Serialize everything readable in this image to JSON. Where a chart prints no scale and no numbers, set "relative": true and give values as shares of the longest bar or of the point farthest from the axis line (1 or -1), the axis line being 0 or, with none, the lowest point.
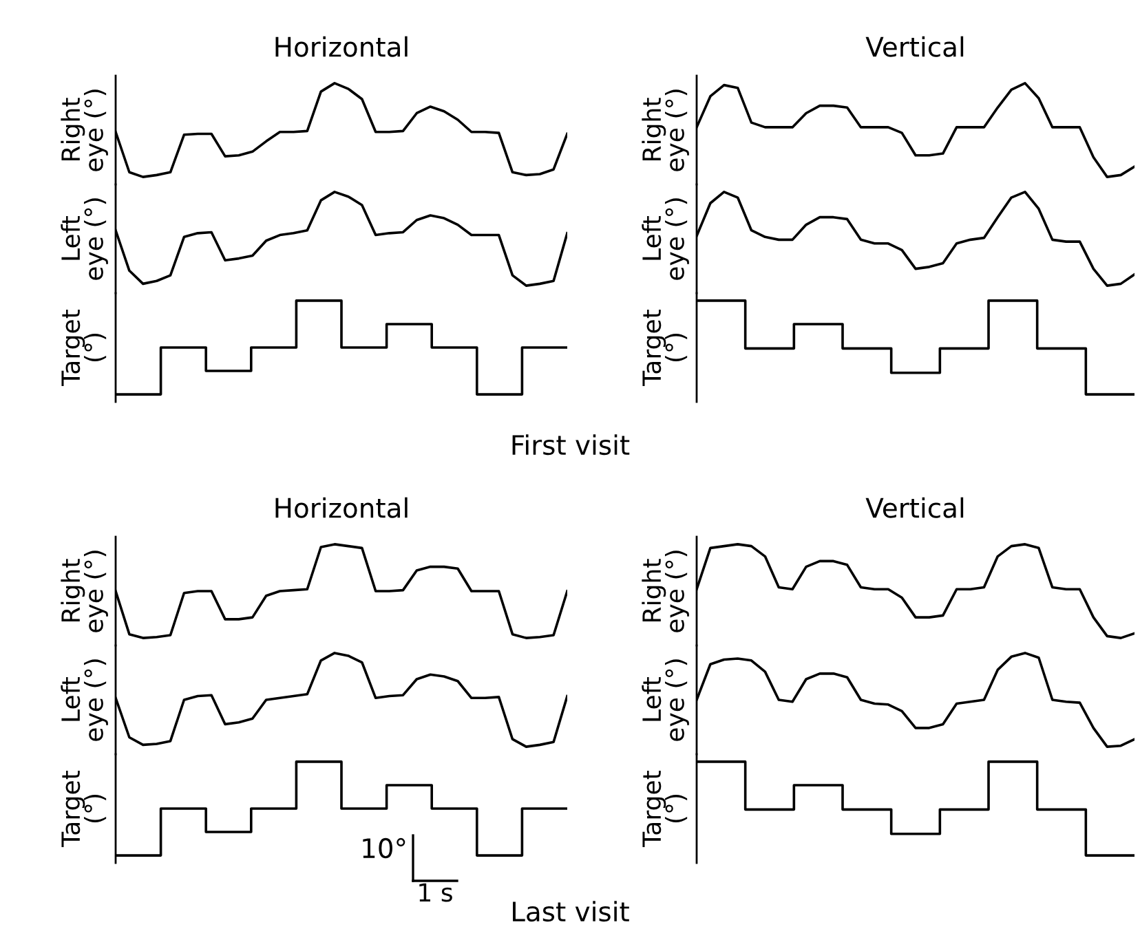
{
  "chart_data": [
    {
      "type": "line",
      "relative": true,
      "title": "Horizontal",
      "ylabel": "Right\neye (°)",
      "color": "#000000",
      "categories": [
        null,
        null,
        null,
        null,
        null,
        null,
        null,
        null,
        null,
        null,
        null,
        null,
        null,
        null,
        null,
        null,
        null,
        null,
        null,
        null,
        null,
        null,
        null,
        null,
        null,
        null,
        null,
        null,
        null,
        null,
        null,
        null,
        null,
        null
      ],
      "values": [
        0.48,
        0.05,
        0,
        0.02,
        0.05,
        0.45,
        0.46,
        0.46,
        0.22,
        0.23,
        0.27,
        0.38,
        0.48,
        0.48,
        0.49,
        0.91,
        1,
        0.94,
        0.83,
        0.48,
        0.48,
        0.49,
        0.68,
        0.75,
        0.7,
        0.61,
        0.48,
        0.48,
        0.47,
        0.05,
        0.02,
        0.03,
        0.08,
        0.46
      ]
    },
    {
      "type": "line",
      "relative": true,
      "ylabel": "Left\neye (°)",
      "color": "#000000",
      "categories": [
        null,
        null,
        null,
        null,
        null,
        null,
        null,
        null,
        null,
        null,
        null,
        null,
        null,
        null,
        null,
        null,
        null,
        null,
        null,
        null,
        null,
        null,
        null,
        null,
        null,
        null,
        null,
        null,
        null,
        null,
        null,
        null,
        null,
        null
      ],
      "values": [
        0.59,
        0.16,
        0.02,
        0.05,
        0.11,
        0.52,
        0.56,
        0.57,
        0.27,
        0.29,
        0.32,
        0.48,
        0.54,
        0.56,
        0.59,
        0.91,
        1,
        0.95,
        0.86,
        0.54,
        0.56,
        0.57,
        0.7,
        0.75,
        0.72,
        0.65,
        0.54,
        0.54,
        0.54,
        0.11,
        0,
        0.02,
        0.05,
        0.56
      ]
    },
    {
      "type": "step",
      "relative": true,
      "ylabel": "Target\n(°)",
      "color": "#000000",
      "categories": [
        null,
        null,
        null,
        null,
        null,
        null,
        null,
        null,
        null,
        null,
        null
      ],
      "values": [
        0,
        0.5,
        0.25,
        0.5,
        1,
        0.5,
        0.75,
        0.5,
        0,
        0.5,
        0.5
      ]
    },
    {
      "type": "line",
      "relative": true,
      "title": "Vertical",
      "ylabel": "Right\neye (°)",
      "color": "#000000",
      "categories": [
        null,
        null,
        null,
        null,
        null,
        null,
        null,
        null,
        null,
        null,
        null,
        null,
        null,
        null,
        null,
        null,
        null,
        null,
        null,
        null,
        null,
        null,
        null,
        null,
        null,
        null,
        null,
        null,
        null,
        null,
        null,
        null,
        null
      ],
      "values": [
        0.53,
        0.86,
        0.98,
        0.95,
        0.58,
        0.53,
        0.53,
        0.53,
        0.68,
        0.76,
        0.76,
        0.74,
        0.53,
        0.53,
        0.53,
        0.47,
        0.23,
        0.23,
        0.25,
        0.53,
        0.53,
        0.53,
        0.74,
        0.93,
        1,
        0.84,
        0.53,
        0.53,
        0.53,
        0.21,
        0,
        0.02,
        0.11
      ]
    },
    {
      "type": "line",
      "relative": true,
      "ylabel": "Left\neye (°)",
      "color": "#000000",
      "categories": [
        null,
        null,
        null,
        null,
        null,
        null,
        null,
        null,
        null,
        null,
        null,
        null,
        null,
        null,
        null,
        null,
        null,
        null,
        null,
        null,
        null,
        null,
        null,
        null,
        null,
        null,
        null,
        null,
        null,
        null,
        null,
        null,
        null
      ],
      "values": [
        0.53,
        0.88,
        1,
        0.94,
        0.59,
        0.52,
        0.49,
        0.49,
        0.65,
        0.73,
        0.73,
        0.71,
        0.49,
        0.45,
        0.45,
        0.38,
        0.18,
        0.2,
        0.24,
        0.45,
        0.49,
        0.51,
        0.73,
        0.94,
        1,
        0.82,
        0.49,
        0.47,
        0.47,
        0.18,
        0,
        0.02,
        0.12
      ]
    },
    {
      "type": "step",
      "relative": true,
      "ylabel": "Target\n(°)",
      "color": "#000000",
      "annotations": [
        "First visit"
      ],
      "categories": [
        null,
        null,
        null,
        null,
        null,
        null,
        null,
        null,
        null,
        null
      ],
      "values": [
        1,
        0.49,
        0.75,
        0.49,
        0.23,
        0.49,
        1,
        0.49,
        0,
        0
      ]
    },
    {
      "type": "line",
      "relative": true,
      "title": "Horizontal",
      "ylabel": "Right\neye (°)",
      "color": "#000000",
      "categories": [
        null,
        null,
        null,
        null,
        null,
        null,
        null,
        null,
        null,
        null,
        null,
        null,
        null,
        null,
        null,
        null,
        null,
        null,
        null,
        null,
        null,
        null,
        null,
        null,
        null,
        null,
        null,
        null,
        null,
        null,
        null,
        null,
        null,
        null
      ],
      "values": [
        0.5,
        0.04,
        0,
        0.01,
        0.03,
        0.48,
        0.5,
        0.5,
        0.2,
        0.2,
        0.22,
        0.45,
        0.5,
        0.51,
        0.52,
        0.97,
        1,
        0.98,
        0.96,
        0.5,
        0.5,
        0.51,
        0.72,
        0.76,
        0.76,
        0.74,
        0.5,
        0.5,
        0.5,
        0.04,
        0,
        0.01,
        0.03,
        0.5
      ]
    },
    {
      "type": "line",
      "relative": true,
      "ylabel": "Left\neye (°)",
      "color": "#000000",
      "categories": [
        null,
        null,
        null,
        null,
        null,
        null,
        null,
        null,
        null,
        null,
        null,
        null,
        null,
        null,
        null,
        null,
        null,
        null,
        null,
        null,
        null,
        null,
        null,
        null,
        null,
        null,
        null,
        null,
        null,
        null,
        null,
        null,
        null,
        null
      ],
      "values": [
        0.52,
        0.1,
        0.02,
        0.03,
        0.06,
        0.5,
        0.54,
        0.55,
        0.24,
        0.26,
        0.3,
        0.5,
        0.52,
        0.54,
        0.56,
        0.92,
        1,
        0.97,
        0.9,
        0.52,
        0.54,
        0.55,
        0.72,
        0.77,
        0.75,
        0.7,
        0.52,
        0.52,
        0.53,
        0.08,
        0,
        0.02,
        0.05,
        0.54
      ]
    },
    {
      "type": "step",
      "relative": true,
      "ylabel": "Target\n(°)",
      "color": "#000000",
      "annotations": [
        "10°",
        "1 s"
      ],
      "categories": [
        null,
        null,
        null,
        null,
        null,
        null,
        null,
        null,
        null,
        null,
        null
      ],
      "values": [
        0,
        0.5,
        0.25,
        0.5,
        1,
        0.5,
        0.75,
        0.5,
        0,
        0.5,
        0.5
      ]
    },
    {
      "type": "line",
      "relative": true,
      "title": "Vertical",
      "ylabel": "Right\neye (°)",
      "color": "#000000",
      "categories": [
        null,
        null,
        null,
        null,
        null,
        null,
        null,
        null,
        null,
        null,
        null,
        null,
        null,
        null,
        null,
        null,
        null,
        null,
        null,
        null,
        null,
        null,
        null,
        null,
        null,
        null,
        null,
        null,
        null,
        null,
        null,
        null,
        null
      ],
      "values": [
        0.52,
        0.96,
        0.98,
        1,
        0.98,
        0.87,
        0.54,
        0.52,
        0.76,
        0.82,
        0.82,
        0.78,
        0.54,
        0.52,
        0.52,
        0.43,
        0.22,
        0.22,
        0.24,
        0.52,
        0.52,
        0.54,
        0.87,
        0.98,
        1,
        0.96,
        0.54,
        0.52,
        0.52,
        0.22,
        0.02,
        0,
        0.05
      ]
    },
    {
      "type": "line",
      "relative": true,
      "ylabel": "Left\neye (°)",
      "color": "#000000",
      "categories": [
        null,
        null,
        null,
        null,
        null,
        null,
        null,
        null,
        null,
        null,
        null,
        null,
        null,
        null,
        null,
        null,
        null,
        null,
        null,
        null,
        null,
        null,
        null,
        null,
        null,
        null,
        null,
        null,
        null,
        null,
        null,
        null,
        null
      ],
      "values": [
        0.5,
        0.88,
        0.93,
        0.94,
        0.92,
        0.8,
        0.5,
        0.48,
        0.72,
        0.78,
        0.78,
        0.74,
        0.5,
        0.46,
        0.45,
        0.38,
        0.2,
        0.2,
        0.24,
        0.46,
        0.48,
        0.5,
        0.82,
        0.96,
        1,
        0.95,
        0.5,
        0.48,
        0.47,
        0.2,
        0,
        0.01,
        0.08
      ]
    },
    {
      "type": "step",
      "relative": true,
      "ylabel": "Target\n(°)",
      "color": "#000000",
      "annotations": [
        "Last visit"
      ],
      "categories": [
        null,
        null,
        null,
        null,
        null,
        null,
        null,
        null,
        null,
        null
      ],
      "values": [
        1,
        0.49,
        0.75,
        0.49,
        0.23,
        0.49,
        1,
        0.49,
        0,
        0
      ]
    }
  ]
}
